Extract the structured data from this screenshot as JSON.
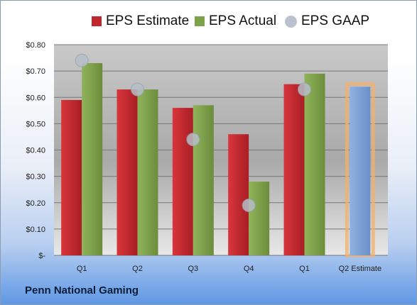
{
  "legend": {
    "estimate": {
      "label": "EPS Estimate",
      "color": "#c0272d"
    },
    "actual": {
      "label": "EPS Actual",
      "color": "#7ea24a"
    },
    "gaap": {
      "label": "EPS GAAP",
      "color": "#b9c2ce"
    }
  },
  "company": "Penn National Gaming",
  "chart_data": {
    "type": "bar",
    "categories": [
      "Q1",
      "Q2",
      "Q3",
      "Q4",
      "Q1",
      "Q2 Estimate"
    ],
    "series": [
      {
        "name": "EPS Estimate",
        "values": [
          0.59,
          0.63,
          0.56,
          0.46,
          0.65,
          null
        ],
        "color": "#c0272d"
      },
      {
        "name": "EPS Actual",
        "values": [
          0.73,
          0.63,
          0.57,
          0.28,
          0.69,
          null
        ],
        "color": "#7ea24a"
      },
      {
        "name": "EPS GAAP",
        "type": "scatter",
        "values": [
          0.74,
          0.63,
          0.44,
          0.19,
          0.63,
          null
        ],
        "color": "#b9c2ce"
      },
      {
        "name": "Q2 Estimate",
        "values": [
          null,
          null,
          null,
          null,
          null,
          0.64
        ],
        "color": "#7fa3d7",
        "highlight": "#f3b06b"
      }
    ],
    "yticks": [
      "$-",
      "$0.10",
      "$0.20",
      "$0.30",
      "$0.40",
      "$0.50",
      "$0.60",
      "$0.70",
      "$0.80"
    ],
    "ylim": [
      0,
      0.8
    ],
    "grid": true,
    "legend_position": "top"
  }
}
